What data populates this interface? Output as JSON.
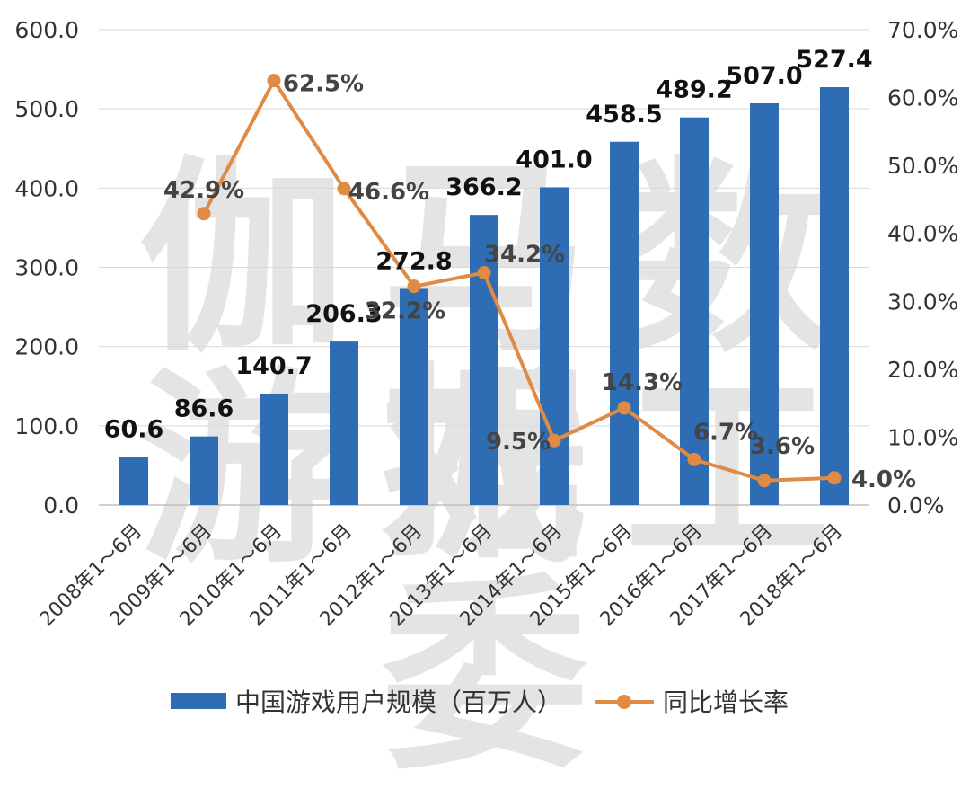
{
  "watermark": {
    "line1": "伽马数据",
    "line2": "游戏工委"
  },
  "legend": {
    "bar_label": "中国游戏用户规模（百万人）",
    "line_label": "同比增长率"
  },
  "colors": {
    "bar": "#2e6db4",
    "line": "#e08a44",
    "grid": "#d9d9d9",
    "text": "#333333"
  },
  "chart_data": {
    "type": "bar",
    "categories": [
      "2008年1～6月",
      "2009年1～6月",
      "2010年1～6月",
      "2011年1～6月",
      "2012年1～6月",
      "2013年1～6月",
      "2014年1～6月",
      "2015年1～6月",
      "2016年1～6月",
      "2017年1～6月",
      "2018年1～6月"
    ],
    "series": [
      {
        "name": "中国游戏用户规模（百万人）",
        "type": "bar",
        "axis": "left",
        "values": [
          60.6,
          86.6,
          140.7,
          206.3,
          272.8,
          366.2,
          401.0,
          458.5,
          489.2,
          507.0,
          527.4
        ],
        "labels": [
          "60.6",
          "86.6",
          "140.7",
          "206.3",
          "272.8",
          "366.2",
          "401.0",
          "458.5",
          "489.2",
          "507.0",
          "527.4"
        ]
      },
      {
        "name": "同比增长率",
        "type": "line",
        "axis": "right",
        "values": [
          null,
          42.9,
          62.5,
          46.6,
          32.2,
          34.2,
          9.5,
          14.3,
          6.7,
          3.6,
          4.0
        ],
        "labels": [
          "",
          "42.9%",
          "62.5%",
          "46.6%",
          "32.2%",
          "34.2%",
          "9.5%",
          "14.3%",
          "6.7%",
          "3.6%",
          "4.0%"
        ]
      }
    ],
    "y_left": {
      "min": 0,
      "max": 600,
      "ticks": [
        "0.0",
        "100.0",
        "200.0",
        "300.0",
        "400.0",
        "500.0",
        "600.0"
      ]
    },
    "y_right": {
      "min": 0,
      "max": 70,
      "ticks": [
        "0.0%",
        "10.0%",
        "20.0%",
        "30.0%",
        "40.0%",
        "50.0%",
        "60.0%",
        "70.0%"
      ]
    },
    "grid": true,
    "legend_position": "bottom"
  }
}
